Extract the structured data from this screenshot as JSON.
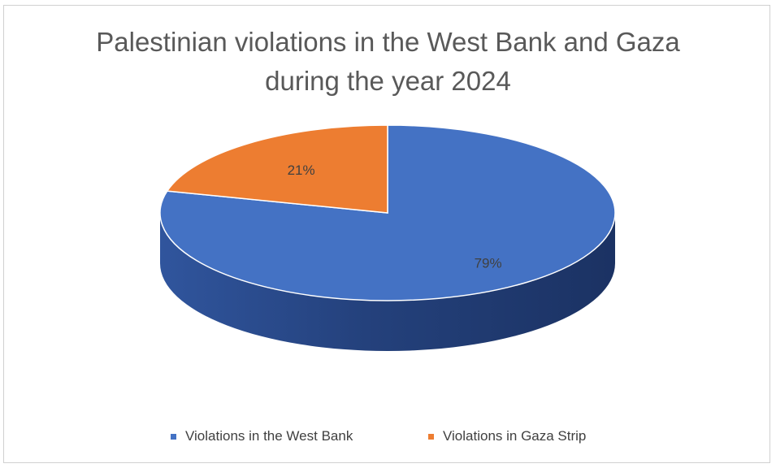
{
  "chart_data": {
    "type": "pie",
    "title": "Palestinian violations in the West Bank and Gaza during the year 2024",
    "title_lines": [
      "Palestinian violations in the West Bank and Gaza",
      "during the year 2024"
    ],
    "categories": [
      "Violations in the West Bank",
      "Violations in Gaza Strip"
    ],
    "values": [
      79,
      21
    ],
    "data_labels": [
      "79%",
      "21%"
    ],
    "colors": [
      "#4472C4",
      "#ED7D31"
    ],
    "legend_position": "bottom",
    "style": "3d"
  }
}
